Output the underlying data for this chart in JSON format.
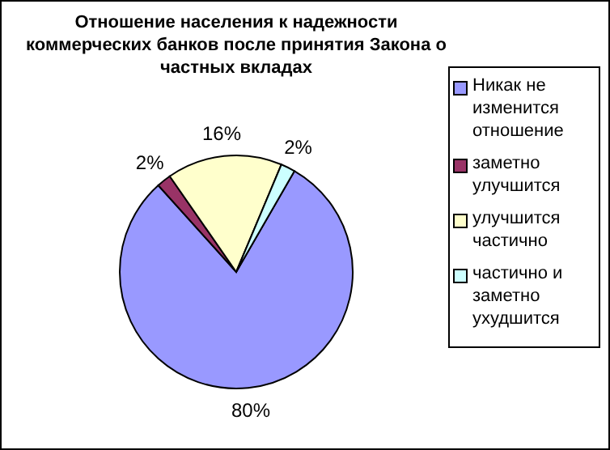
{
  "chart_data": {
    "type": "pie",
    "title": "Отношение населения к надежности коммерческих банков после принятия Закона о частных вкладах",
    "categories": [
      "Никак не изменится отношение",
      "заметно улучшится",
      "улучшится частично",
      "частично и заметно ухудшится"
    ],
    "values": [
      80,
      2,
      16,
      2
    ],
    "colors": [
      "#9999ff",
      "#993366",
      "#ffffcc",
      "#ccffff"
    ],
    "value_labels": [
      "80%",
      "2%",
      "16%",
      "2%"
    ],
    "legend": "right"
  }
}
